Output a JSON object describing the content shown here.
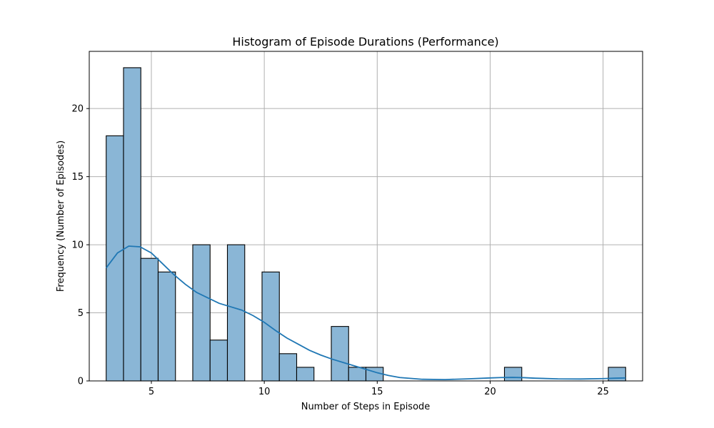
{
  "chart_data": {
    "type": "bar",
    "title": "Histogram of Episode Durations (Performance)",
    "xlabel": "Number of Steps in Episode",
    "ylabel": "Frequency (Number of Episodes)",
    "xlim": [
      2.25,
      26.75
    ],
    "ylim": [
      0,
      24.2
    ],
    "grid": true,
    "xticks": [
      5,
      10,
      15,
      20,
      25
    ],
    "yticks": [
      0,
      5,
      10,
      15,
      20
    ],
    "bin_width": 0.767,
    "bins": [
      {
        "left": 3.0,
        "count": 18
      },
      {
        "left": 3.767,
        "count": 23
      },
      {
        "left": 4.533,
        "count": 9
      },
      {
        "left": 5.3,
        "count": 8
      },
      {
        "left": 6.833,
        "count": 10
      },
      {
        "left": 7.6,
        "count": 3
      },
      {
        "left": 8.367,
        "count": 10
      },
      {
        "left": 9.9,
        "count": 8
      },
      {
        "left": 10.667,
        "count": 2
      },
      {
        "left": 11.433,
        "count": 1
      },
      {
        "left": 12.967,
        "count": 4
      },
      {
        "left": 13.733,
        "count": 1
      },
      {
        "left": 14.5,
        "count": 1
      },
      {
        "left": 20.633,
        "count": 1
      },
      {
        "left": 25.233,
        "count": 1
      }
    ],
    "kde": {
      "x": [
        3,
        3.5,
        4,
        4.5,
        5,
        5.5,
        6,
        6.5,
        7,
        7.5,
        8,
        8.5,
        9,
        9.5,
        10,
        10.5,
        11,
        11.5,
        12,
        12.5,
        13,
        13.5,
        14,
        14.5,
        15,
        15.5,
        16,
        17,
        18,
        19,
        20,
        20.5,
        21,
        21.5,
        22,
        23,
        24,
        25,
        25.5,
        26
      ],
      "y": [
        8.3,
        9.4,
        9.9,
        9.85,
        9.4,
        8.6,
        7.8,
        7.1,
        6.5,
        6.1,
        5.7,
        5.45,
        5.2,
        4.8,
        4.3,
        3.7,
        3.15,
        2.7,
        2.25,
        1.9,
        1.6,
        1.35,
        1.1,
        0.85,
        0.6,
        0.4,
        0.25,
        0.12,
        0.1,
        0.15,
        0.22,
        0.25,
        0.26,
        0.24,
        0.2,
        0.15,
        0.14,
        0.17,
        0.2,
        0.22
      ]
    }
  }
}
